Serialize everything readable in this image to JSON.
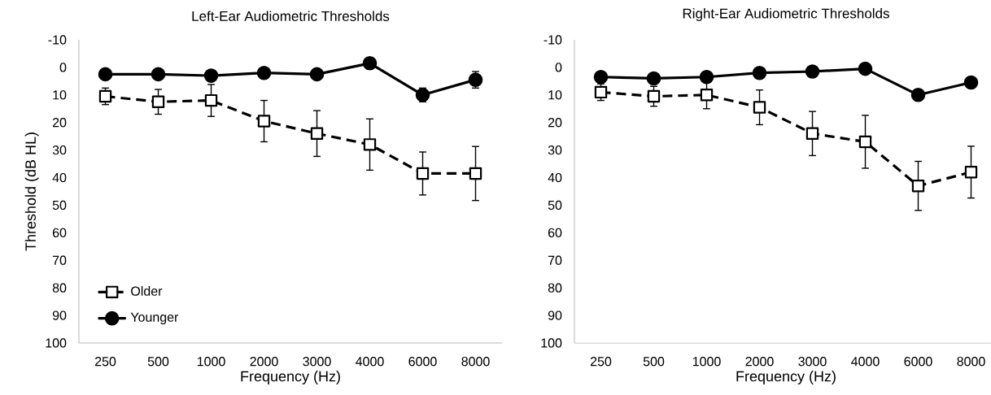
{
  "chart_data": [
    {
      "type": "line",
      "title": "Left-Ear Audiometric Thresholds",
      "xlabel": "Frequency (Hz)",
      "ylabel": "Threshold (dB HL)",
      "categories": [
        "250",
        "500",
        "1000",
        "2000",
        "3000",
        "4000",
        "6000",
        "8000"
      ],
      "ylim": [
        100,
        -10
      ],
      "yticks": [
        -10,
        0,
        10,
        20,
        30,
        40,
        50,
        60,
        70,
        80,
        90,
        100
      ],
      "grid": false,
      "legend": "bottom left",
      "series": [
        {
          "name": "Older",
          "color": "#000000",
          "marker": "square",
          "line_style": "dashed",
          "values": [
            10.5,
            12.5,
            12,
            19.5,
            24,
            28,
            38.5,
            38.5
          ],
          "errors": [
            3,
            4.5,
            5.8,
            7.5,
            8.3,
            9.3,
            7.8,
            9.8
          ]
        },
        {
          "name": "Younger",
          "color": "#000000",
          "marker": "circle",
          "line_style": "solid",
          "values": [
            2.5,
            2.5,
            3,
            2,
            2.5,
            -1.5,
            10,
            4.5
          ],
          "errors": [
            1,
            1,
            1,
            1,
            1.5,
            2,
            2.5,
            3
          ]
        }
      ]
    },
    {
      "type": "line",
      "title": "Right-Ear Audiometric Thresholds",
      "xlabel": "Frequency (Hz)",
      "categories": [
        "250",
        "500",
        "1000",
        "2000",
        "3000",
        "4000",
        "6000",
        "8000"
      ],
      "ylim": [
        100,
        -10
      ],
      "yticks": [
        -10,
        0,
        10,
        20,
        30,
        40,
        50,
        60,
        70,
        80,
        90,
        100
      ],
      "grid": false,
      "series": [
        {
          "color": "#000000",
          "marker": "square",
          "line_style": "dashed",
          "values": [
            9,
            10.5,
            10,
            14.5,
            24,
            27,
            43,
            38
          ],
          "errors": [
            3,
            3.6,
            5,
            6.3,
            8,
            9.6,
            8.9,
            9.4
          ]
        },
        {
          "color": "#000000",
          "marker": "circle",
          "line_style": "solid",
          "values": [
            3.5,
            4,
            3.5,
            2,
            1.5,
            0.5,
            10,
            5.5
          ],
          "errors": [
            1,
            1,
            1,
            1,
            1,
            1,
            2,
            2
          ]
        }
      ]
    }
  ]
}
